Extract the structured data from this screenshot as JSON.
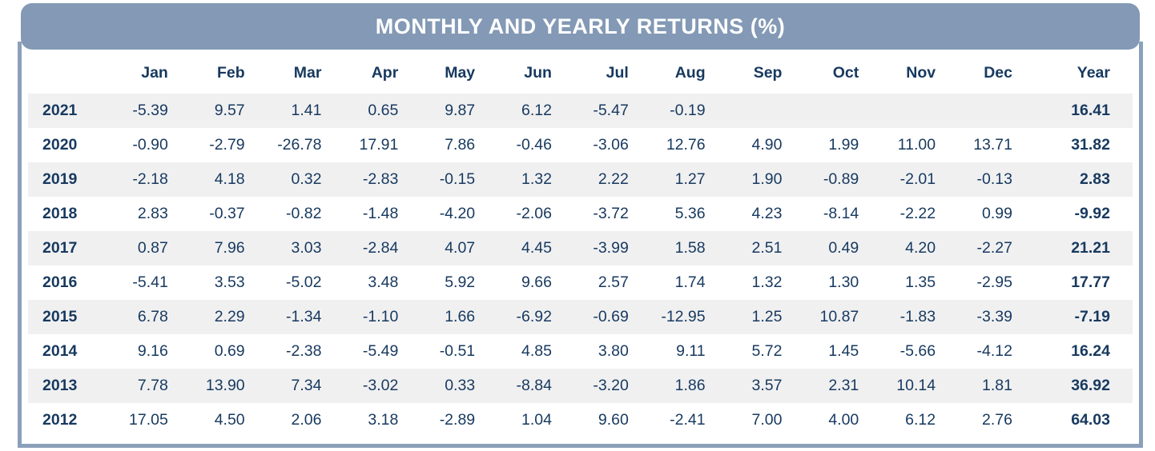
{
  "colors": {
    "header_bg": "#8399b5",
    "border": "#8ba0ba",
    "text_navy": "#17395f",
    "stripe": "#f0f0f1",
    "background": "#ffffff"
  },
  "chart_data": {
    "type": "table",
    "title": "MONTHLY AND YEARLY RETURNS (%)",
    "columns": [
      "Jan",
      "Feb",
      "Mar",
      "Apr",
      "May",
      "Jun",
      "Jul",
      "Aug",
      "Sep",
      "Oct",
      "Nov",
      "Dec",
      "Year"
    ],
    "rows": [
      {
        "year": "2021",
        "values": [
          "-5.39",
          "9.57",
          "1.41",
          "0.65",
          "9.87",
          "6.12",
          "-5.47",
          "-0.19",
          "",
          "",
          "",
          ""
        ],
        "total": "16.41"
      },
      {
        "year": "2020",
        "values": [
          "-0.90",
          "-2.79",
          "-26.78",
          "17.91",
          "7.86",
          "-0.46",
          "-3.06",
          "12.76",
          "4.90",
          "1.99",
          "11.00",
          "13.71"
        ],
        "total": "31.82"
      },
      {
        "year": "2019",
        "values": [
          "-2.18",
          "4.18",
          "0.32",
          "-2.83",
          "-0.15",
          "1.32",
          "2.22",
          "1.27",
          "1.90",
          "-0.89",
          "-2.01",
          "-0.13"
        ],
        "total": "2.83"
      },
      {
        "year": "2018",
        "values": [
          "2.83",
          "-0.37",
          "-0.82",
          "-1.48",
          "-4.20",
          "-2.06",
          "-3.72",
          "5.36",
          "4.23",
          "-8.14",
          "-2.22",
          "0.99"
        ],
        "total": "-9.92"
      },
      {
        "year": "2017",
        "values": [
          "0.87",
          "7.96",
          "3.03",
          "-2.84",
          "4.07",
          "4.45",
          "-3.99",
          "1.58",
          "2.51",
          "0.49",
          "4.20",
          "-2.27"
        ],
        "total": "21.21"
      },
      {
        "year": "2016",
        "values": [
          "-5.41",
          "3.53",
          "-5.02",
          "3.48",
          "5.92",
          "9.66",
          "2.57",
          "1.74",
          "1.32",
          "1.30",
          "1.35",
          "-2.95"
        ],
        "total": "17.77"
      },
      {
        "year": "2015",
        "values": [
          "6.78",
          "2.29",
          "-1.34",
          "-1.10",
          "1.66",
          "-6.92",
          "-0.69",
          "-12.95",
          "1.25",
          "10.87",
          "-1.83",
          "-3.39"
        ],
        "total": "-7.19"
      },
      {
        "year": "2014",
        "values": [
          "9.16",
          "0.69",
          "-2.38",
          "-5.49",
          "-0.51",
          "4.85",
          "3.80",
          "9.11",
          "5.72",
          "1.45",
          "-5.66",
          "-4.12"
        ],
        "total": "16.24"
      },
      {
        "year": "2013",
        "values": [
          "7.78",
          "13.90",
          "7.34",
          "-3.02",
          "0.33",
          "-8.84",
          "-3.20",
          "1.86",
          "3.57",
          "2.31",
          "10.14",
          "1.81"
        ],
        "total": "36.92"
      },
      {
        "year": "2012",
        "values": [
          "17.05",
          "4.50",
          "2.06",
          "3.18",
          "-2.89",
          "1.04",
          "9.60",
          "-2.41",
          "7.00",
          "4.00",
          "6.12",
          "2.76"
        ],
        "total": "64.03"
      }
    ]
  }
}
